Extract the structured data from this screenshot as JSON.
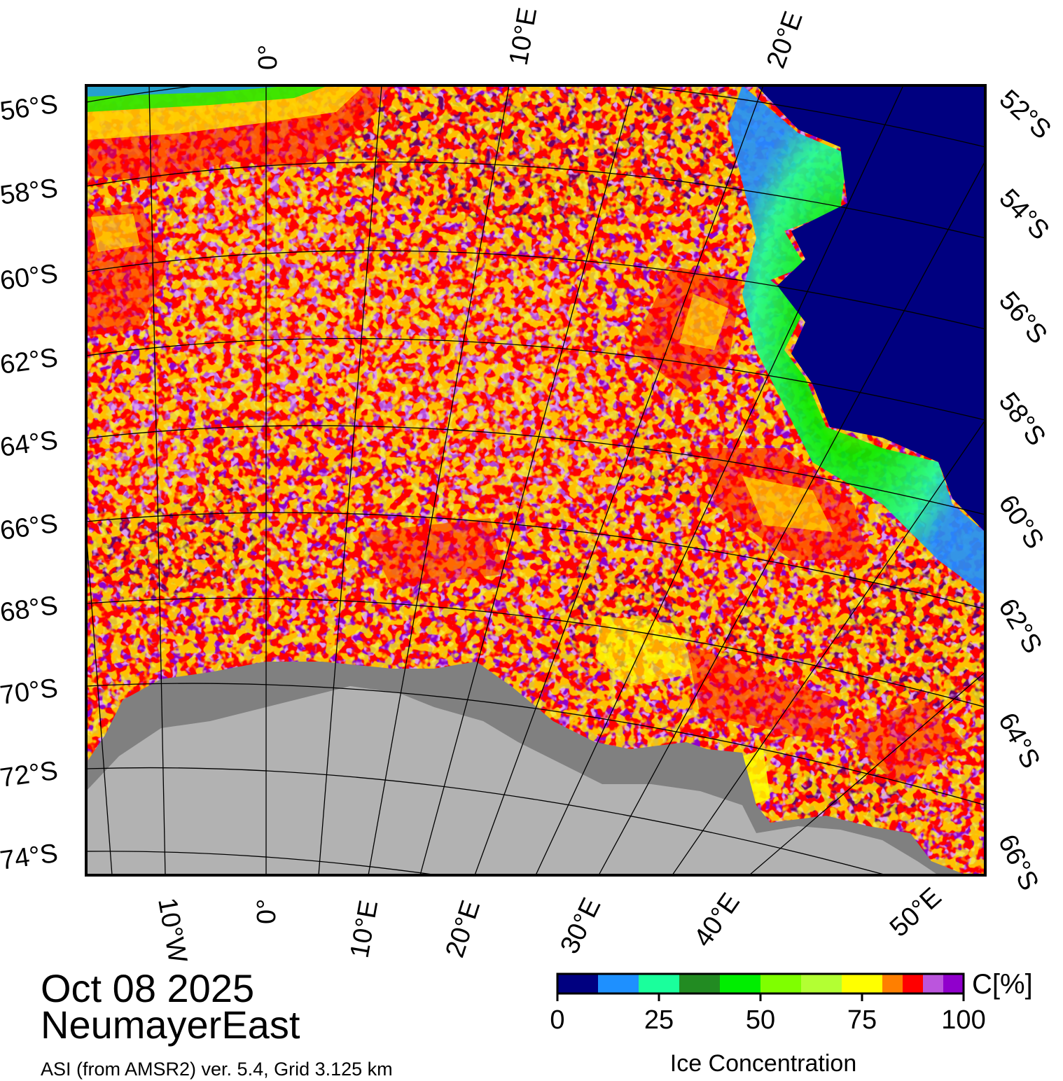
{
  "map": {
    "date": "Oct 08 2025",
    "region": "NeumayerEast",
    "product_line": "ASI (from AMSR2) ver. 5.4,  Grid 3.125 km",
    "top_lon_labels": [
      "0°",
      "10°E",
      "20°E"
    ],
    "bottom_lon_labels": [
      "10°W",
      "0°",
      "10°E",
      "20°E",
      "30°E",
      "40°E",
      "50°E"
    ],
    "left_lat_labels": [
      "56°S",
      "58°S",
      "60°S",
      "62°S",
      "64°S",
      "66°S",
      "68°S",
      "70°S",
      "72°S",
      "74°S"
    ],
    "right_lat_labels": [
      "52°S",
      "54°S",
      "56°S",
      "58°S",
      "60°S",
      "62°S",
      "64°S",
      "66°S"
    ],
    "colors": {
      "open_water": "#000080",
      "land_ice_shelf": "#808080",
      "land": "#b2b2b2",
      "high_ice": "#9000cc",
      "max_ice": "#6a0068",
      "frame": "#000000"
    }
  },
  "colorbar": {
    "unit": "C[%]",
    "label": "Ice Concentration",
    "ticks": [
      "0",
      "25",
      "50",
      "75",
      "100"
    ],
    "colors": [
      "#000080",
      "#1e90ff",
      "#1aff9c",
      "#228b22",
      "#00ee00",
      "#7fff00",
      "#b3ff33",
      "#ffff00",
      "#ff7f00",
      "#ff0000",
      "#bb55dd",
      "#9000cc"
    ]
  }
}
